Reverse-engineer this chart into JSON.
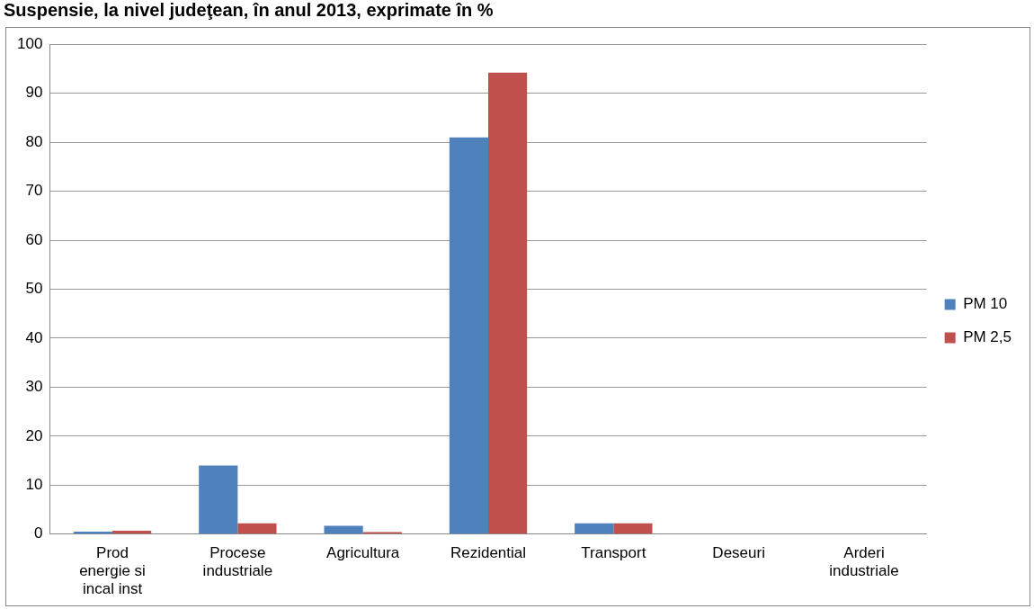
{
  "chart_data": {
    "type": "bar",
    "title": "Suspensie, la nivel judeţean, în anul 2013, exprimate în %",
    "categories": [
      "Prod energie si incal inst",
      "Procese industriale",
      "Agricultura",
      "Rezidential",
      "Transport",
      "Deseuri",
      "Arderi industriale"
    ],
    "series": [
      {
        "name": "PM 10",
        "color": "#4f81bd",
        "values": [
          0.5,
          14,
          1.7,
          81,
          2.2,
          0,
          0
        ]
      },
      {
        "name": "PM 2,5",
        "color": "#c0504d",
        "values": [
          0.7,
          2.2,
          0.4,
          94.2,
          2.2,
          0,
          0
        ]
      }
    ],
    "ylim": [
      0,
      100
    ],
    "yticks": [
      0,
      10,
      20,
      30,
      40,
      50,
      60,
      70,
      80,
      90,
      100
    ],
    "grid": "y",
    "legend": "right"
  }
}
